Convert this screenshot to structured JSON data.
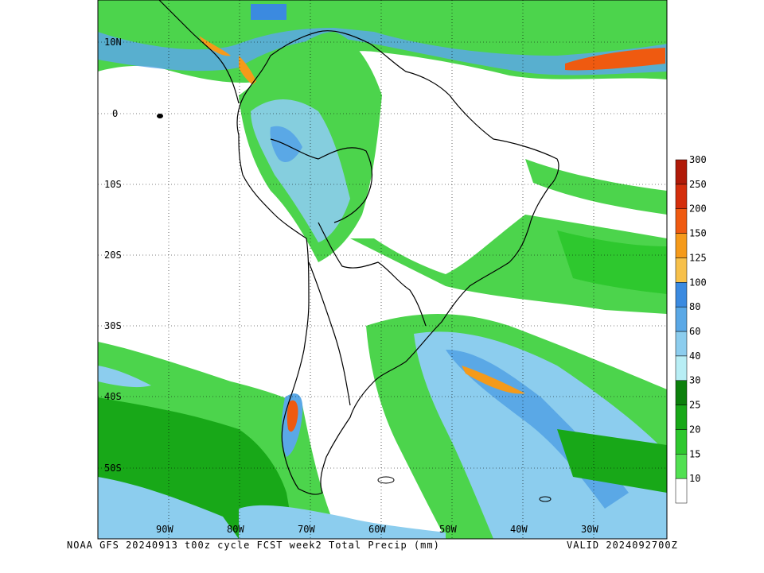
{
  "title_line": "NOAA GFS 20240913 t00z cycle FCST week2 Total Precip (mm)",
  "valid_line": "VALID 2024092700Z",
  "lat_labels": [
    "10N",
    "0",
    "10S",
    "20S",
    "30S",
    "40S",
    "50S"
  ],
  "lon_labels": [
    "90W",
    "80W",
    "70W",
    "60W",
    "50W",
    "40W",
    "30W"
  ],
  "colorbar": {
    "unit": "mm",
    "levels": [
      "10",
      "15",
      "20",
      "25",
      "30",
      "40",
      "60",
      "80",
      "100",
      "125",
      "150",
      "200",
      "250",
      "300"
    ],
    "colors": [
      "#ffffff",
      "#52e052",
      "#2ec82e",
      "#18a818",
      "#0c800c",
      "#b8eef5",
      "#8ccdee",
      "#5aa8e6",
      "#3b8ae0",
      "#f7c04a",
      "#f59a1a",
      "#ef5a10",
      "#d42e0c",
      "#b01a08"
    ]
  }
}
